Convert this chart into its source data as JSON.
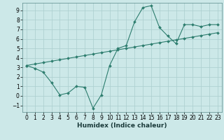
{
  "xlabel": "Humidex (Indice chaleur)",
  "bg_color": "#cce8e8",
  "line_color": "#2d7d6e",
  "grid_color": "#aacece",
  "xlim": [
    -0.5,
    23.5
  ],
  "ylim": [
    -1.7,
    9.8
  ],
  "yticks": [
    -1,
    0,
    1,
    2,
    3,
    4,
    5,
    6,
    7,
    8,
    9
  ],
  "xticks": [
    0,
    1,
    2,
    3,
    4,
    5,
    6,
    7,
    8,
    9,
    10,
    11,
    12,
    13,
    14,
    15,
    16,
    17,
    18,
    19,
    20,
    21,
    22,
    23
  ],
  "line1_x": [
    0,
    1,
    2,
    3,
    4,
    5,
    6,
    7,
    8,
    9,
    10,
    11,
    12,
    13,
    14,
    15,
    16,
    17,
    18,
    19,
    20,
    21,
    22,
    23
  ],
  "line1_y": [
    3.2,
    2.9,
    2.5,
    1.4,
    0.1,
    0.3,
    1.0,
    0.9,
    -1.3,
    0.1,
    3.2,
    5.0,
    5.3,
    7.8,
    9.3,
    9.5,
    7.2,
    6.3,
    5.5,
    7.5,
    7.5,
    7.3,
    7.5,
    7.5
  ],
  "line2_x": [
    0,
    1,
    2,
    3,
    4,
    5,
    6,
    7,
    8,
    9,
    10,
    11,
    12,
    13,
    14,
    15,
    16,
    17,
    18,
    19,
    20,
    21,
    22,
    23
  ],
  "line2_y": [
    3.2,
    3.35,
    3.5,
    3.65,
    3.8,
    3.95,
    4.1,
    4.25,
    4.4,
    4.55,
    4.7,
    4.85,
    5.0,
    5.15,
    5.3,
    5.45,
    5.6,
    5.75,
    5.9,
    6.05,
    6.2,
    6.35,
    6.5,
    6.65
  ],
  "marker": "D",
  "markersize": 2.0,
  "linewidth": 0.8,
  "tick_fontsize": 5.5,
  "xlabel_fontsize": 6.5
}
